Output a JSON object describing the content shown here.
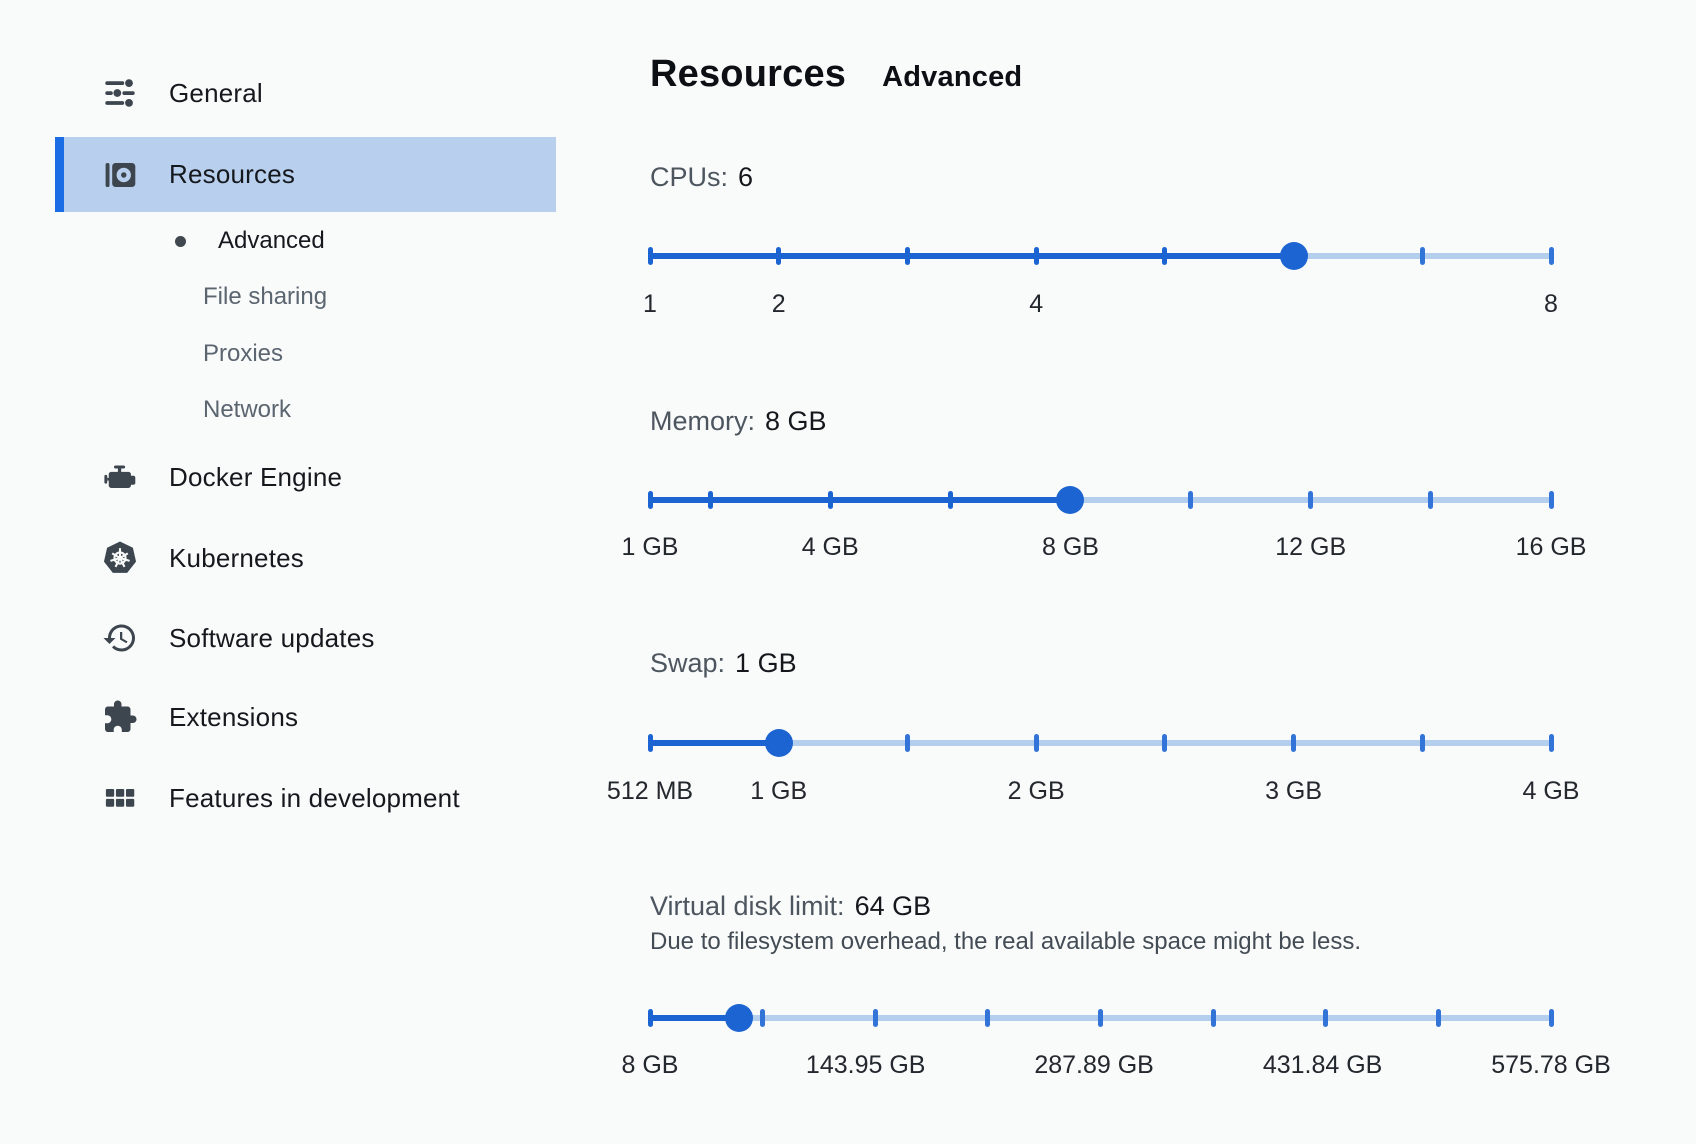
{
  "colors": {
    "accent": "#1c64d2",
    "accent_bar": "#1a6de4",
    "selected_bg": "#b8cfed",
    "track_inactive": "#b4cfee",
    "tick_inactive": "#3274d8",
    "icon": "#3d454e",
    "text_dark": "#15191e",
    "text_sub": "#5b6570",
    "background": "#f9fafa"
  },
  "header": {
    "title": "Resources",
    "subtitle": "Advanced"
  },
  "sidebar": {
    "items": [
      {
        "label": "General",
        "icon": "tune-icon"
      },
      {
        "label": "Resources",
        "icon": "resources-icon",
        "selected": true
      },
      {
        "label": "Advanced",
        "sub": true,
        "active": true
      },
      {
        "label": "File sharing",
        "sub": true
      },
      {
        "label": "Proxies",
        "sub": true
      },
      {
        "label": "Network",
        "sub": true
      },
      {
        "label": "Docker Engine",
        "icon": "engine-icon"
      },
      {
        "label": "Kubernetes",
        "icon": "kubernetes-icon"
      },
      {
        "label": "Software updates",
        "icon": "history-icon"
      },
      {
        "label": "Extensions",
        "icon": "puzzle-icon"
      },
      {
        "label": "Features in development",
        "icon": "grid-icon"
      }
    ]
  },
  "sliders": [
    {
      "id": "cpus",
      "label": "CPUs:",
      "value": "6",
      "min": 1,
      "max": 8,
      "value_num": 6,
      "fill_pct": 71.429,
      "ticks_pct": [
        0,
        14.286,
        28.571,
        42.857,
        57.143,
        71.429,
        85.714,
        100
      ],
      "axis": [
        {
          "text": "1",
          "pct": 0
        },
        {
          "text": "2",
          "pct": 14.286
        },
        {
          "text": "4",
          "pct": 42.857
        },
        {
          "text": "8",
          "pct": 100
        }
      ]
    },
    {
      "id": "memory",
      "label": "Memory:",
      "value": "8 GB",
      "min": 1,
      "max": 16,
      "value_num": 8,
      "fill_pct": 46.667,
      "ticks_pct": [
        0,
        6.667,
        20,
        33.333,
        46.667,
        60,
        73.333,
        86.667,
        100
      ],
      "axis": [
        {
          "text": "1 GB",
          "pct": 0
        },
        {
          "text": "4 GB",
          "pct": 20
        },
        {
          "text": "8 GB",
          "pct": 46.667
        },
        {
          "text": "12 GB",
          "pct": 73.333
        },
        {
          "text": "16 GB",
          "pct": 100
        }
      ]
    },
    {
      "id": "swap",
      "label": "Swap:",
      "value": "1 GB",
      "min": 0.5,
      "max": 4,
      "value_num": 1,
      "fill_pct": 14.286,
      "ticks_pct": [
        0,
        14.286,
        28.571,
        42.857,
        57.143,
        71.429,
        85.714,
        100
      ],
      "axis": [
        {
          "text": "512 MB",
          "pct": 0
        },
        {
          "text": "1 GB",
          "pct": 14.286
        },
        {
          "text": "2 GB",
          "pct": 42.857
        },
        {
          "text": "3 GB",
          "pct": 71.429
        },
        {
          "text": "4 GB",
          "pct": 100
        }
      ]
    },
    {
      "id": "disk",
      "label": "Virtual disk limit:",
      "value": "64 GB",
      "note": "Due to filesystem overhead, the real available space might be less.",
      "min": 8,
      "max": 575.78,
      "value_num": 64,
      "fill_pct": 9.863,
      "ticks_pct": [
        0,
        12.5,
        25,
        37.5,
        50,
        62.5,
        75,
        87.5,
        100
      ],
      "axis": [
        {
          "text": "8 GB",
          "pct": 0
        },
        {
          "text": "143.95 GB",
          "pct": 23.94
        },
        {
          "text": "287.89 GB",
          "pct": 49.29
        },
        {
          "text": "431.84 GB",
          "pct": 74.65
        },
        {
          "text": "575.78 GB",
          "pct": 100
        }
      ]
    }
  ]
}
